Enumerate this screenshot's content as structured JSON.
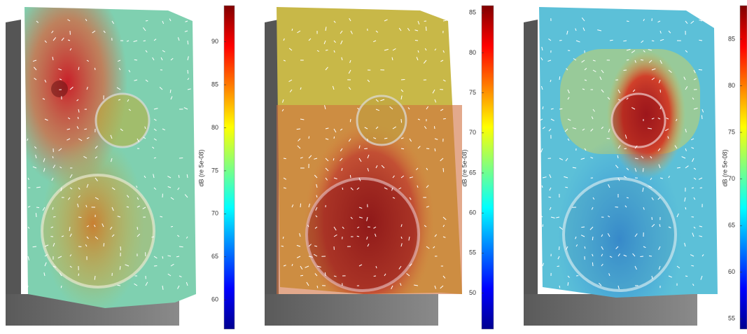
{
  "panels": [
    {
      "colorbar": {
        "label": "dB (re 5e-08)",
        "range": [
          56.6,
          94.2
        ],
        "ticks": [
          60,
          65,
          70,
          75,
          80,
          85,
          90
        ]
      }
    },
    {
      "colorbar": {
        "label": "dB (re 5e-08)",
        "range": [
          45.5,
          85.9
        ],
        "ticks": [
          50,
          55,
          60,
          65,
          70,
          75,
          80,
          85
        ]
      }
    },
    {
      "colorbar": {
        "label": "dB (re 5e-08)",
        "range": [
          53.9,
          88.6
        ],
        "ticks": [
          55,
          60,
          65,
          70,
          75,
          80,
          85
        ]
      }
    }
  ]
}
